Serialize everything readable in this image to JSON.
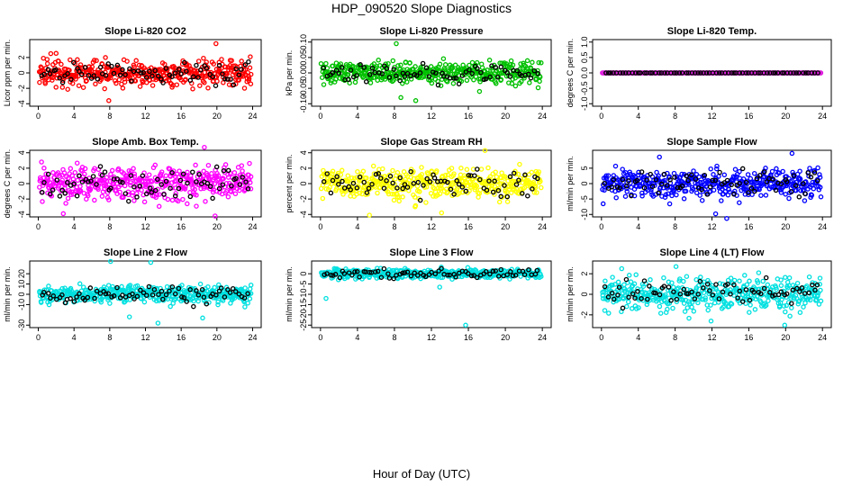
{
  "title": "HDP_090520  Slope Diagnostics",
  "xlabel": "Hour of Day (UTC)",
  "chart_data": [
    {
      "type": "scatter",
      "title": "Slope Li-820 CO2",
      "ylabel": "Licor ppm per min.",
      "color": "#ff0000",
      "xlim": [
        0,
        24
      ],
      "ylim": [
        -4,
        4
      ],
      "xticks": [
        "0",
        "4",
        "8",
        "12",
        "16",
        "20",
        "24"
      ],
      "yticks": [
        {
          "v": -4,
          "label": "-4"
        },
        {
          "v": -2,
          "label": "-2"
        },
        {
          "v": 0,
          "label": "0"
        },
        {
          "v": 2,
          "label": "2"
        }
      ],
      "spread": 1.2,
      "series": [
        {
          "name": "colored",
          "values": []
        },
        {
          "name": "black",
          "values": []
        }
      ],
      "outliers": [
        [
          19.9,
          3.8
        ],
        [
          7.9,
          -3.6
        ],
        [
          1.4,
          2.5
        ]
      ]
    },
    {
      "type": "scatter",
      "title": "Slope Li-820 Pressure",
      "ylabel": "kPa per min.",
      "color": "#00c000",
      "xlim": [
        0,
        24
      ],
      "ylim": [
        -0.1,
        0.1
      ],
      "xticks": [
        "0",
        "4",
        "8",
        "12",
        "16",
        "20",
        "24"
      ],
      "yticks": [
        {
          "v": -0.1,
          "label": "-0.10"
        },
        {
          "v": -0.05,
          "label": "-0.05"
        },
        {
          "v": 0,
          "label": "0.00"
        },
        {
          "v": 0.05,
          "label": "0.05"
        },
        {
          "v": 0.1,
          "label": "0.10"
        }
      ],
      "spread": 0.025,
      "series": [
        {
          "name": "colored",
          "values": []
        },
        {
          "name": "black",
          "values": []
        }
      ],
      "outliers": [
        [
          8.2,
          0.095
        ],
        [
          10.3,
          -0.09
        ],
        [
          8.7,
          -0.08
        ],
        [
          17.2,
          -0.06
        ]
      ]
    },
    {
      "type": "scatter",
      "title": "Slope Li-820 Temp.",
      "ylabel": "degrees C per min.",
      "color": "#e020e0",
      "xlim": [
        0,
        24
      ],
      "ylim": [
        -1,
        1
      ],
      "xticks": [
        "0",
        "4",
        "8",
        "12",
        "16",
        "20",
        "24"
      ],
      "yticks": [
        {
          "v": -1,
          "label": "-1.0"
        },
        {
          "v": -0.5,
          "label": "-0.5"
        },
        {
          "v": 0,
          "label": "0.0"
        },
        {
          "v": 0.5,
          "label": "0.5"
        },
        {
          "v": 1,
          "label": "1.0"
        }
      ],
      "spread": 0.0,
      "series": [
        {
          "name": "colored",
          "values": []
        },
        {
          "name": "black",
          "values": []
        }
      ],
      "outliers": []
    },
    {
      "type": "scatter",
      "title": "Slope Amb. Box Temp.",
      "ylabel": "degrees C per min.",
      "color": "#ff00ff",
      "xlim": [
        0,
        24
      ],
      "ylim": [
        -4,
        4
      ],
      "xticks": [
        "0",
        "4",
        "8",
        "12",
        "16",
        "20",
        "24"
      ],
      "yticks": [
        {
          "v": -4,
          "label": "-4"
        },
        {
          "v": -2,
          "label": "-2"
        },
        {
          "v": 0,
          "label": "0"
        },
        {
          "v": 2,
          "label": "2"
        },
        {
          "v": 4,
          "label": "4"
        }
      ],
      "spread": 1.5,
      "series": [
        {
          "name": "colored",
          "values": []
        },
        {
          "name": "black",
          "values": []
        }
      ],
      "outliers": [
        [
          18.6,
          4.7
        ],
        [
          19.8,
          -4.2
        ],
        [
          2.8,
          -3.9
        ]
      ]
    },
    {
      "type": "scatter",
      "title": "Slope Gas Stream RH",
      "ylabel": "percent per min.",
      "color": "#ffff00",
      "xlim": [
        0,
        24
      ],
      "ylim": [
        -4,
        4
      ],
      "xticks": [
        "0",
        "4",
        "8",
        "12",
        "16",
        "20",
        "24"
      ],
      "yticks": [
        {
          "v": -4,
          "label": "-4"
        },
        {
          "v": -2,
          "label": "-2"
        },
        {
          "v": 0,
          "label": "0"
        },
        {
          "v": 2,
          "label": "2"
        },
        {
          "v": 4,
          "label": "4"
        }
      ],
      "spread": 1.4,
      "series": [
        {
          "name": "colored",
          "values": []
        },
        {
          "name": "black",
          "values": []
        }
      ],
      "outliers": [
        [
          17.8,
          4.3
        ],
        [
          5.3,
          -4.1
        ],
        [
          13.1,
          -3.8
        ]
      ]
    },
    {
      "type": "scatter",
      "title": "Slope Sample Flow",
      "ylabel": "ml/min per min.",
      "color": "#0000ff",
      "xlim": [
        0,
        24
      ],
      "ylim": [
        -10,
        10
      ],
      "xticks": [
        "0",
        "4",
        "8",
        "12",
        "16",
        "20",
        "24"
      ],
      "yticks": [
        {
          "v": -10,
          "label": "-10"
        },
        {
          "v": -5,
          "label": "-5"
        },
        {
          "v": 0,
          "label": "0"
        },
        {
          "v": 5,
          "label": "5"
        }
      ],
      "spread": 3.2,
      "series": [
        {
          "name": "colored",
          "values": []
        },
        {
          "name": "black",
          "values": []
        }
      ],
      "outliers": [
        [
          20.7,
          9.8
        ],
        [
          13.6,
          -11.3
        ],
        [
          12.4,
          -9.8
        ],
        [
          6.3,
          8.6
        ]
      ]
    },
    {
      "type": "scatter",
      "title": "Slope Line 2 Flow",
      "ylabel": "ml/min per min.",
      "color": "#00e0e0",
      "xlim": [
        0,
        24
      ],
      "ylim": [
        -30,
        30
      ],
      "xticks": [
        "0",
        "4",
        "8",
        "12",
        "16",
        "20",
        "24"
      ],
      "yticks": [
        {
          "v": -30,
          "label": "-30"
        },
        {
          "v": -10,
          "label": "-10"
        },
        {
          "v": 0,
          "label": "0"
        },
        {
          "v": 10,
          "label": "10"
        },
        {
          "v": 20,
          "label": "20"
        }
      ],
      "spread": 6,
      "series": [
        {
          "name": "colored",
          "values": []
        },
        {
          "name": "black",
          "values": []
        }
      ],
      "outliers": [
        [
          8.1,
          32
        ],
        [
          12.6,
          31
        ],
        [
          13.4,
          -28
        ],
        [
          18.4,
          -23
        ],
        [
          10.2,
          -22
        ]
      ]
    },
    {
      "type": "scatter",
      "title": "Slope Line 3 Flow",
      "ylabel": "ml/min per min.",
      "color": "#00e0e0",
      "xlim": [
        0,
        24
      ],
      "ylim": [
        -25,
        5
      ],
      "xticks": [
        "0",
        "4",
        "8",
        "12",
        "16",
        "20",
        "24"
      ],
      "yticks": [
        {
          "v": -25,
          "label": "-25"
        },
        {
          "v": -20,
          "label": "-20"
        },
        {
          "v": -15,
          "label": "-15"
        },
        {
          "v": -10,
          "label": "-10"
        },
        {
          "v": -5,
          "label": "-5"
        },
        {
          "v": 0,
          "label": "0"
        }
      ],
      "spread": 1.6,
      "series": [
        {
          "name": "colored",
          "values": []
        },
        {
          "name": "black",
          "values": []
        }
      ],
      "outliers": [
        [
          15.7,
          -25
        ],
        [
          0.6,
          -12
        ],
        [
          12.9,
          -6.5
        ]
      ]
    },
    {
      "type": "scatter",
      "title": "Slope Line 4 (LT) Flow",
      "ylabel": "ml/min per min.",
      "color": "#00e0e0",
      "xlim": [
        0,
        24
      ],
      "ylim": [
        -3,
        3
      ],
      "xticks": [
        "0",
        "4",
        "8",
        "12",
        "16",
        "20",
        "24"
      ],
      "yticks": [
        {
          "v": -2,
          "label": "-2"
        },
        {
          "v": 0,
          "label": "0"
        },
        {
          "v": 2,
          "label": "2"
        }
      ],
      "spread": 1.1,
      "series": [
        {
          "name": "colored",
          "values": []
        },
        {
          "name": "black",
          "values": []
        }
      ],
      "outliers": [
        [
          19.9,
          -3
        ],
        [
          8.1,
          2.7
        ],
        [
          11.9,
          -2.6
        ],
        [
          2.2,
          2.5
        ]
      ]
    }
  ]
}
